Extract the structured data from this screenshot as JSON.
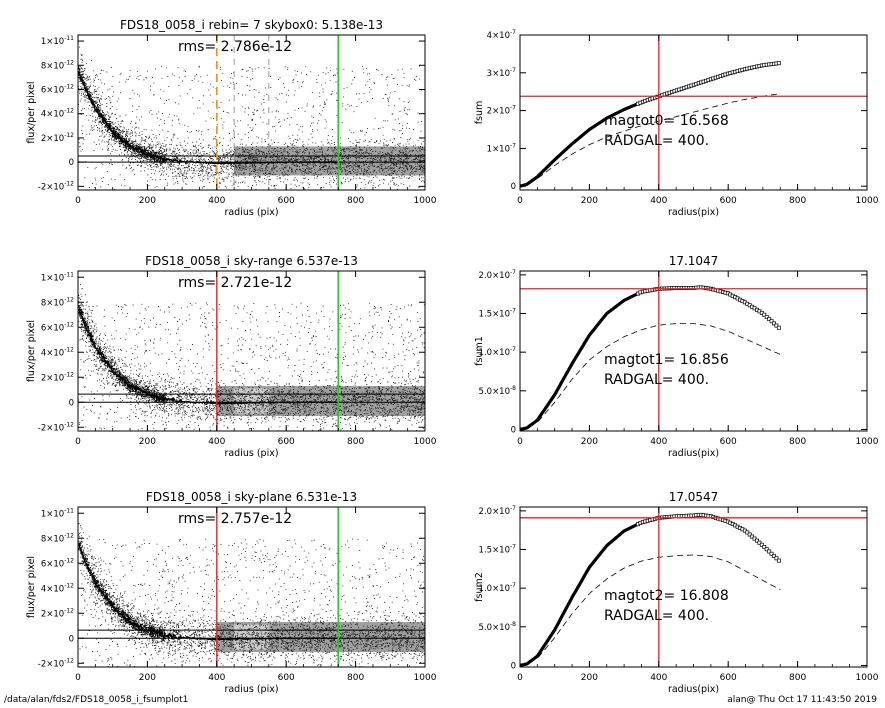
{
  "footer": {
    "path": "/data/alan/fds2/FDS18_0058_i_fsumplot1",
    "stamp": "alan@  Thu Oct 17 11:43:50 2019"
  },
  "colors": {
    "axis": "#000000",
    "scatter": "#1a1a1a",
    "grey_band": "#a0a0a0",
    "light_band": "#cccccc",
    "red": "#e8222a",
    "green": "#20d020",
    "orange": "#f0901e",
    "dashed_grey": "#8c8c8c"
  },
  "chart_data": [
    {
      "id": "flux1",
      "type": "scatter",
      "title": "FDS18_0058_i rebin= 7    skybox0:  5.138e-13",
      "annotation": "rms= 2.786e-12",
      "xlabel": "radius (pix)",
      "ylabel": "flux/per pixel",
      "xlim": [
        0,
        1000
      ],
      "ylim": [
        -2.3e-12,
        1.05e-11
      ],
      "xticks": [
        0,
        200,
        400,
        600,
        800,
        1000
      ],
      "xtick_labels": [
        "0",
        "200",
        "400",
        "600",
        "800",
        "1000"
      ],
      "yticks": [
        -2e-12,
        0,
        2e-12,
        4e-12,
        6e-12,
        8e-12,
        1e-11
      ],
      "ytick_labels": [
        {
          "m": "-2×10",
          "e": "-12"
        },
        {
          "m": "0",
          "e": ""
        },
        {
          "m": "2×10",
          "e": "-12"
        },
        {
          "m": "4×10",
          "e": "-12"
        },
        {
          "m": "6×10",
          "e": "-12"
        },
        {
          "m": "8×10",
          "e": "-12"
        },
        {
          "m": "1×10",
          "e": "-11"
        }
      ],
      "hlines": [
        0,
        5.1e-13
      ],
      "vlines": [
        {
          "x": 400,
          "style": "orange-dashed"
        },
        {
          "x": 450,
          "style": "grey-dashed"
        },
        {
          "x": 550,
          "style": "grey-dashed"
        },
        {
          "x": 750,
          "style": "green"
        }
      ],
      "profile": {
        "x": [
          0,
          20,
          50,
          100,
          150,
          200,
          250,
          300,
          400,
          500,
          600,
          750
        ],
        "y": [
          7.6e-12,
          6.2e-12,
          4.4e-12,
          2.5e-12,
          1.3e-12,
          6.5e-13,
          2.5e-13,
          5e-14,
          -1e-13,
          -5e-14,
          0,
          0
        ]
      },
      "band": {
        "from": 450,
        "to": 1000
      }
    },
    {
      "id": "fsum",
      "type": "line",
      "title": "",
      "xlabel": "radius(pix)",
      "ylabel": "fsum",
      "xlim": [
        0,
        1000
      ],
      "ylim": [
        -1e-08,
        4e-07
      ],
      "xticks": [
        0,
        200,
        400,
        600,
        800,
        1000
      ],
      "xtick_labels": [
        "0",
        "200",
        "400",
        "600",
        "800",
        "1000"
      ],
      "yticks": [
        0,
        1e-07,
        2e-07,
        3e-07,
        4e-07
      ],
      "ytick_labels": [
        {
          "m": "0",
          "e": ""
        },
        {
          "m": "1×10",
          "e": "-7"
        },
        {
          "m": "2×10",
          "e": "-7"
        },
        {
          "m": "3×10",
          "e": "-7"
        },
        {
          "m": "4×10",
          "e": "-7"
        }
      ],
      "texts": [
        "magtot0=  16.568",
        "RADGAL=    400."
      ],
      "hline": 2.38e-07,
      "vline": 400,
      "series": [
        {
          "style": "squares",
          "x": [
            0,
            20,
            50,
            100,
            150,
            200,
            250,
            300,
            350,
            400,
            450,
            500,
            550,
            600,
            650,
            700,
            750
          ],
          "y": [
            0,
            5e-09,
            2.5e-08,
            7e-08,
            1.12e-07,
            1.5e-07,
            1.8e-07,
            2.03e-07,
            2.22e-07,
            2.38e-07,
            2.53e-07,
            2.68e-07,
            2.83e-07,
            2.98e-07,
            3.1e-07,
            3.2e-07,
            3.26e-07
          ]
        },
        {
          "style": "dashed",
          "x": [
            0,
            50,
            100,
            150,
            200,
            250,
            300,
            350,
            400,
            450,
            500,
            550,
            600,
            650,
            700,
            750
          ],
          "y": [
            0,
            2e-08,
            5.5e-08,
            8.5e-08,
            1.1e-07,
            1.3e-07,
            1.46e-07,
            1.6e-07,
            1.72e-07,
            1.84e-07,
            1.96e-07,
            2.08e-07,
            2.2e-07,
            2.3e-07,
            2.38e-07,
            2.45e-07
          ]
        }
      ]
    },
    {
      "id": "flux2",
      "type": "scatter",
      "title": "FDS18_0058_i sky-range  6.537e-13",
      "annotation": "rms= 2.721e-12",
      "xlabel": "radius (pix)",
      "ylabel": "flux/per pixel",
      "xlim": [
        0,
        1000
      ],
      "ylim": [
        -2.3e-12,
        1.05e-11
      ],
      "xticks": [
        0,
        200,
        400,
        600,
        800,
        1000
      ],
      "xtick_labels": [
        "0",
        "200",
        "400",
        "600",
        "800",
        "1000"
      ],
      "yticks": [
        -2e-12,
        0,
        2e-12,
        4e-12,
        6e-12,
        8e-12,
        1e-11
      ],
      "ytick_labels": [
        {
          "m": "-2×10",
          "e": "-12"
        },
        {
          "m": "0",
          "e": ""
        },
        {
          "m": "2×10",
          "e": "-12"
        },
        {
          "m": "4×10",
          "e": "-12"
        },
        {
          "m": "6×10",
          "e": "-12"
        },
        {
          "m": "8×10",
          "e": "-12"
        },
        {
          "m": "1×10",
          "e": "-11"
        }
      ],
      "hlines": [
        0,
        6.5e-13
      ],
      "vlines": [
        {
          "x": 400,
          "style": "red"
        },
        {
          "x": 750,
          "style": "green"
        }
      ],
      "profile": {
        "x": [
          0,
          20,
          50,
          100,
          150,
          200,
          250,
          300,
          400,
          500,
          600,
          750
        ],
        "y": [
          7.6e-12,
          6.2e-12,
          4.4e-12,
          2.5e-12,
          1.3e-12,
          6.5e-13,
          2.5e-13,
          5e-14,
          -1e-13,
          -5e-14,
          0,
          0
        ]
      },
      "band": {
        "from": 400,
        "to": 1000
      },
      "light_band": {
        "from": 450,
        "to": 550
      }
    },
    {
      "id": "fsum1",
      "type": "line",
      "title": "17.1047",
      "xlabel": "radius(pix)",
      "ylabel": "fsum1",
      "xlim": [
        0,
        1000
      ],
      "ylim": [
        -2e-09,
        2.05e-07
      ],
      "xticks": [
        0,
        200,
        400,
        600,
        800,
        1000
      ],
      "xtick_labels": [
        "0",
        "200",
        "400",
        "600",
        "800",
        "1000"
      ],
      "yticks": [
        0,
        5e-08,
        1e-07,
        1.5e-07,
        2e-07
      ],
      "ytick_labels": [
        {
          "m": "0",
          "e": ""
        },
        {
          "m": "5.0×10",
          "e": "-8"
        },
        {
          "m": "1.0×10",
          "e": "-7"
        },
        {
          "m": "1.5×10",
          "e": "-7"
        },
        {
          "m": "2.0×10",
          "e": "-7"
        }
      ],
      "texts": [
        "magtot1=  16.856",
        "RADGAL=    400."
      ],
      "hline": 1.82e-07,
      "vline": 400,
      "series": [
        {
          "style": "squares",
          "x": [
            0,
            20,
            50,
            100,
            150,
            200,
            250,
            300,
            350,
            400,
            450,
            500,
            520,
            550,
            600,
            650,
            700,
            750
          ],
          "y": [
            0,
            2e-09,
            1.2e-08,
            4.5e-08,
            8.5e-08,
            1.22e-07,
            1.5e-07,
            1.67e-07,
            1.78e-07,
            1.82e-07,
            1.83e-07,
            1.83e-07,
            1.84e-07,
            1.82e-07,
            1.76e-07,
            1.64e-07,
            1.5e-07,
            1.3e-07
          ]
        },
        {
          "style": "dashed",
          "x": [
            0,
            50,
            100,
            150,
            200,
            250,
            300,
            350,
            400,
            450,
            500,
            550,
            600,
            650,
            700,
            750
          ],
          "y": [
            0,
            9e-09,
            3.5e-08,
            6.5e-08,
            9e-08,
            1.07e-07,
            1.2e-07,
            1.29e-07,
            1.35e-07,
            1.37e-07,
            1.37e-07,
            1.34e-07,
            1.27e-07,
            1.17e-07,
            1.07e-07,
            9.7e-08
          ]
        }
      ]
    },
    {
      "id": "flux3",
      "type": "scatter",
      "title": "FDS18_0058_i sky-plane  6.531e-13",
      "annotation": "rms= 2.757e-12",
      "xlabel": "radius (pix)",
      "ylabel": "flux/per pixel",
      "xlim": [
        0,
        1000
      ],
      "ylim": [
        -2.3e-12,
        1.05e-11
      ],
      "xticks": [
        0,
        200,
        400,
        600,
        800,
        1000
      ],
      "xtick_labels": [
        "0",
        "200",
        "400",
        "600",
        "800",
        "1000"
      ],
      "yticks": [
        -2e-12,
        0,
        2e-12,
        4e-12,
        6e-12,
        8e-12,
        1e-11
      ],
      "ytick_labels": [
        {
          "m": "-2×10",
          "e": "-12"
        },
        {
          "m": "0",
          "e": ""
        },
        {
          "m": "2×10",
          "e": "-12"
        },
        {
          "m": "4×10",
          "e": "-12"
        },
        {
          "m": "6×10",
          "e": "-12"
        },
        {
          "m": "8×10",
          "e": "-12"
        },
        {
          "m": "1×10",
          "e": "-11"
        }
      ],
      "hlines": [
        0,
        6.5e-13
      ],
      "vlines": [
        {
          "x": 400,
          "style": "red"
        },
        {
          "x": 750,
          "style": "green"
        }
      ],
      "profile": {
        "x": [
          0,
          20,
          50,
          100,
          150,
          200,
          250,
          300,
          400,
          500,
          600,
          750
        ],
        "y": [
          7.6e-12,
          6.2e-12,
          4.4e-12,
          2.5e-12,
          1.3e-12,
          6.5e-13,
          2.5e-13,
          5e-14,
          -1e-13,
          -5e-14,
          0,
          0
        ]
      },
      "band": {
        "from": 400,
        "to": 1000
      },
      "light_band": {
        "from": 450,
        "to": 550
      }
    },
    {
      "id": "fsum2",
      "type": "line",
      "title": "17.0547",
      "xlabel": "radius(pix)",
      "ylabel": "fsum2",
      "xlim": [
        0,
        1000
      ],
      "ylim": [
        -2e-09,
        2.05e-07
      ],
      "xticks": [
        0,
        200,
        400,
        600,
        800,
        1000
      ],
      "xtick_labels": [
        "0",
        "200",
        "400",
        "600",
        "800",
        "1000"
      ],
      "yticks": [
        0,
        5e-08,
        1e-07,
        1.5e-07,
        2e-07
      ],
      "ytick_labels": [
        {
          "m": "0",
          "e": ""
        },
        {
          "m": "5.0×10",
          "e": "-8"
        },
        {
          "m": "1.0×10",
          "e": "-7"
        },
        {
          "m": "1.5×10",
          "e": "-7"
        },
        {
          "m": "2.0×10",
          "e": "-7"
        }
      ],
      "texts": [
        "magtot2=  16.808",
        "RADGAL=    400."
      ],
      "hline": 1.91e-07,
      "vline": 400,
      "series": [
        {
          "style": "squares",
          "x": [
            0,
            20,
            50,
            100,
            150,
            200,
            250,
            300,
            350,
            400,
            450,
            500,
            520,
            550,
            600,
            650,
            700,
            750
          ],
          "y": [
            0,
            2e-09,
            1.2e-08,
            4.6e-08,
            8.8e-08,
            1.27e-07,
            1.55e-07,
            1.74e-07,
            1.85e-07,
            1.91e-07,
            1.93e-07,
            1.94e-07,
            1.95e-07,
            1.93e-07,
            1.86e-07,
            1.74e-07,
            1.55e-07,
            1.34e-07
          ]
        },
        {
          "style": "dashed",
          "x": [
            0,
            50,
            100,
            150,
            200,
            250,
            300,
            350,
            400,
            450,
            500,
            550,
            600,
            650,
            700,
            750
          ],
          "y": [
            0,
            9e-09,
            3.6e-08,
            6.7e-08,
            9.3e-08,
            1.12e-07,
            1.26e-07,
            1.35e-07,
            1.4e-07,
            1.42e-07,
            1.43e-07,
            1.41e-07,
            1.34e-07,
            1.22e-07,
            1.1e-07,
            9.8e-08
          ]
        }
      ]
    }
  ]
}
